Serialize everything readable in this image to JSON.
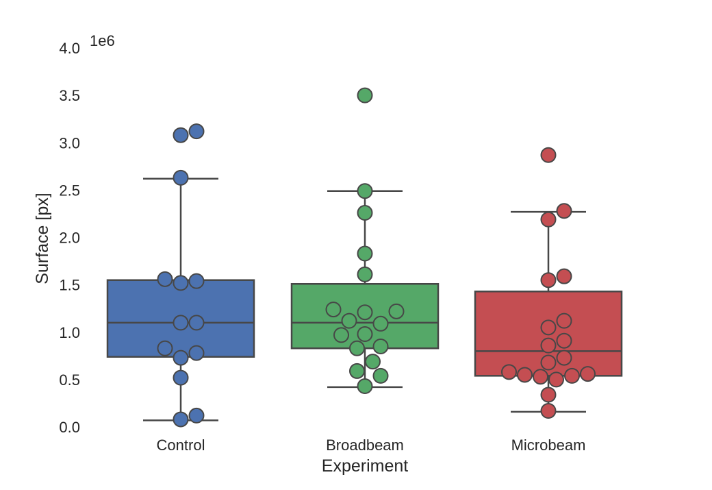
{
  "chart_data": {
    "type": "box",
    "xlabel": "Experiment",
    "ylabel": "Surface [px]",
    "y_offset_label": "1e6",
    "y_scale_factor": 1000000,
    "ylim": [
      0,
      4.0
    ],
    "yticks": [
      "0.0",
      "0.5",
      "1.0",
      "1.5",
      "2.0",
      "2.5",
      "3.0",
      "3.5",
      "4.0"
    ],
    "grid": false,
    "legend": "none",
    "categories": [
      "Control",
      "Broadbeam",
      "Microbeam"
    ],
    "series": [
      {
        "category": "Control",
        "color": "#4c72b0",
        "box": {
          "whisker_low": 0.07,
          "q1": 0.74,
          "median": 1.1,
          "q3": 1.55,
          "whisker_high": 2.62
        },
        "points": [
          3.12,
          3.08,
          2.63,
          1.56,
          1.54,
          1.52,
          1.1,
          1.1,
          0.83,
          0.78,
          0.73,
          0.52,
          0.12,
          0.08
        ]
      },
      {
        "category": "Broadbeam",
        "color": "#55a868",
        "box": {
          "whisker_low": 0.42,
          "q1": 0.83,
          "median": 1.1,
          "q3": 1.51,
          "whisker_high": 2.49
        },
        "points": [
          3.5,
          2.49,
          2.26,
          1.83,
          1.61,
          1.24,
          1.22,
          1.21,
          1.12,
          1.09,
          0.98,
          0.97,
          0.85,
          0.83,
          0.69,
          0.59,
          0.54,
          0.43
        ]
      },
      {
        "category": "Microbeam",
        "color": "#c44e52",
        "box": {
          "whisker_low": 0.16,
          "q1": 0.54,
          "median": 0.8,
          "q3": 1.43,
          "whisker_high": 2.27
        },
        "points": [
          2.87,
          2.28,
          2.19,
          1.59,
          1.55,
          1.12,
          1.05,
          0.91,
          0.86,
          0.73,
          0.68,
          0.58,
          0.56,
          0.55,
          0.54,
          0.53,
          0.5,
          0.34,
          0.17
        ]
      }
    ]
  }
}
